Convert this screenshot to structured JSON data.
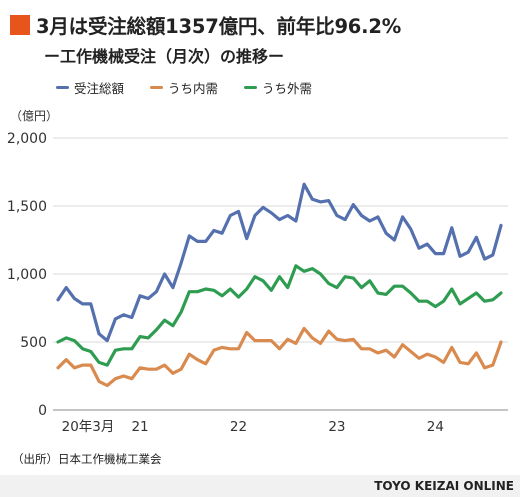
{
  "header": {
    "title": "3月は受注総額1357億円、前年比96.2%",
    "subtitle": "ー工作機械受注（月次）の推移ー",
    "accent_color": "#e8551c"
  },
  "footer": {
    "source": "（出所）日本工作機械工業会",
    "brand": "TOYO KEIZAI ONLINE"
  },
  "chart_data": {
    "type": "line",
    "ylabel": "（億円）",
    "ylim": [
      0,
      2000
    ],
    "yticks": [
      0,
      500,
      "1,000",
      "1,500",
      "2,000"
    ],
    "x_tick_labels": [
      "20年3月",
      "21",
      "22",
      "23",
      "24"
    ],
    "x_tick_month_index": [
      0,
      10,
      22,
      34,
      46
    ],
    "legend_position": "top",
    "grid": true,
    "series": [
      {
        "name": "受注総額",
        "color": "#5470ae",
        "values": [
          810,
          900,
          820,
          780,
          780,
          560,
          510,
          670,
          700,
          680,
          840,
          820,
          870,
          1000,
          900,
          1080,
          1280,
          1240,
          1240,
          1320,
          1300,
          1430,
          1460,
          1260,
          1430,
          1490,
          1450,
          1400,
          1430,
          1390,
          1660,
          1550,
          1530,
          1540,
          1430,
          1400,
          1510,
          1430,
          1390,
          1420,
          1300,
          1250,
          1420,
          1330,
          1190,
          1220,
          1150,
          1150,
          1340,
          1130,
          1160,
          1270,
          1110,
          1140,
          1357
        ]
      },
      {
        "name": "うち内需",
        "color": "#d98a4e",
        "values": [
          310,
          370,
          310,
          330,
          330,
          210,
          180,
          230,
          250,
          230,
          310,
          300,
          300,
          330,
          270,
          300,
          410,
          370,
          340,
          440,
          460,
          450,
          450,
          570,
          510,
          510,
          510,
          450,
          520,
          490,
          600,
          530,
          490,
          580,
          520,
          510,
          520,
          450,
          450,
          420,
          440,
          390,
          480,
          430,
          380,
          410,
          390,
          350,
          460,
          350,
          340,
          420,
          310,
          330,
          500
        ]
      },
      {
        "name": "うち外需",
        "color": "#2f9d51",
        "values": [
          500,
          530,
          510,
          450,
          430,
          350,
          330,
          440,
          450,
          450,
          540,
          530,
          590,
          660,
          620,
          720,
          870,
          870,
          890,
          880,
          840,
          890,
          830,
          890,
          980,
          950,
          880,
          980,
          900,
          1060,
          1020,
          1040,
          1000,
          930,
          900,
          980,
          970,
          900,
          950,
          860,
          850,
          910,
          910,
          860,
          800,
          800,
          760,
          800,
          890,
          780,
          820,
          860,
          800,
          810,
          860
        ]
      }
    ]
  }
}
